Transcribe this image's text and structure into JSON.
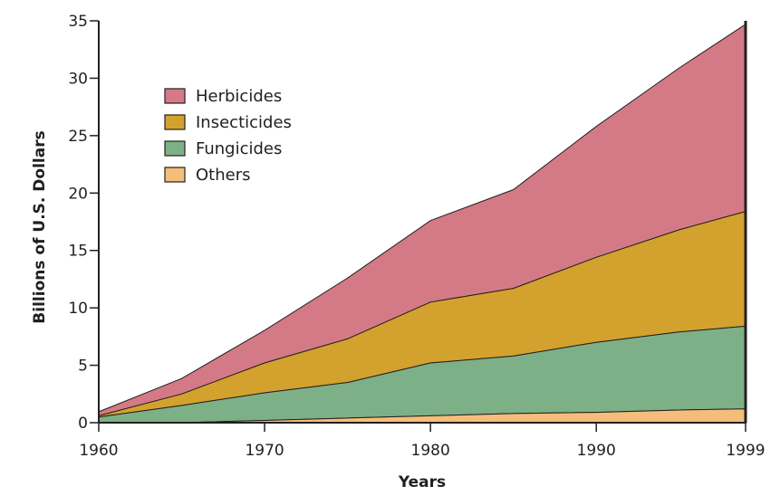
{
  "chart_data": {
    "type": "area",
    "stacked": true,
    "title": "",
    "xlabel": "Years",
    "ylabel": "Billions of U.S. Dollars",
    "xlim": [
      1960,
      1999
    ],
    "ylim": [
      0,
      35
    ],
    "xticks": [
      1960,
      1970,
      1980,
      1990,
      1999
    ],
    "yticks": [
      0,
      5,
      10,
      15,
      20,
      25,
      30,
      35
    ],
    "legend_position": "top-left",
    "x": [
      1960,
      1965,
      1970,
      1975,
      1980,
      1985,
      1990,
      1995,
      1999
    ],
    "series": [
      {
        "name": "Herbicides",
        "color": "#d47a86",
        "values": [
          0.35,
          1.35,
          2.85,
          5.3,
          7.1,
          8.6,
          11.4,
          14.1,
          16.3
        ]
      },
      {
        "name": "Insecticides",
        "color": "#d3a12e",
        "values": [
          0.1,
          1.0,
          2.6,
          3.8,
          5.3,
          5.9,
          7.4,
          8.9,
          10.0
        ]
      },
      {
        "name": "Fungicides",
        "color": "#7db086",
        "values": [
          0.5,
          1.5,
          2.4,
          3.1,
          4.6,
          5.0,
          6.1,
          6.8,
          7.2
        ]
      },
      {
        "name": "Others",
        "color": "#f4be7a",
        "values": [
          0.0,
          0.0,
          0.2,
          0.4,
          0.6,
          0.8,
          0.9,
          1.1,
          1.2
        ]
      }
    ]
  }
}
